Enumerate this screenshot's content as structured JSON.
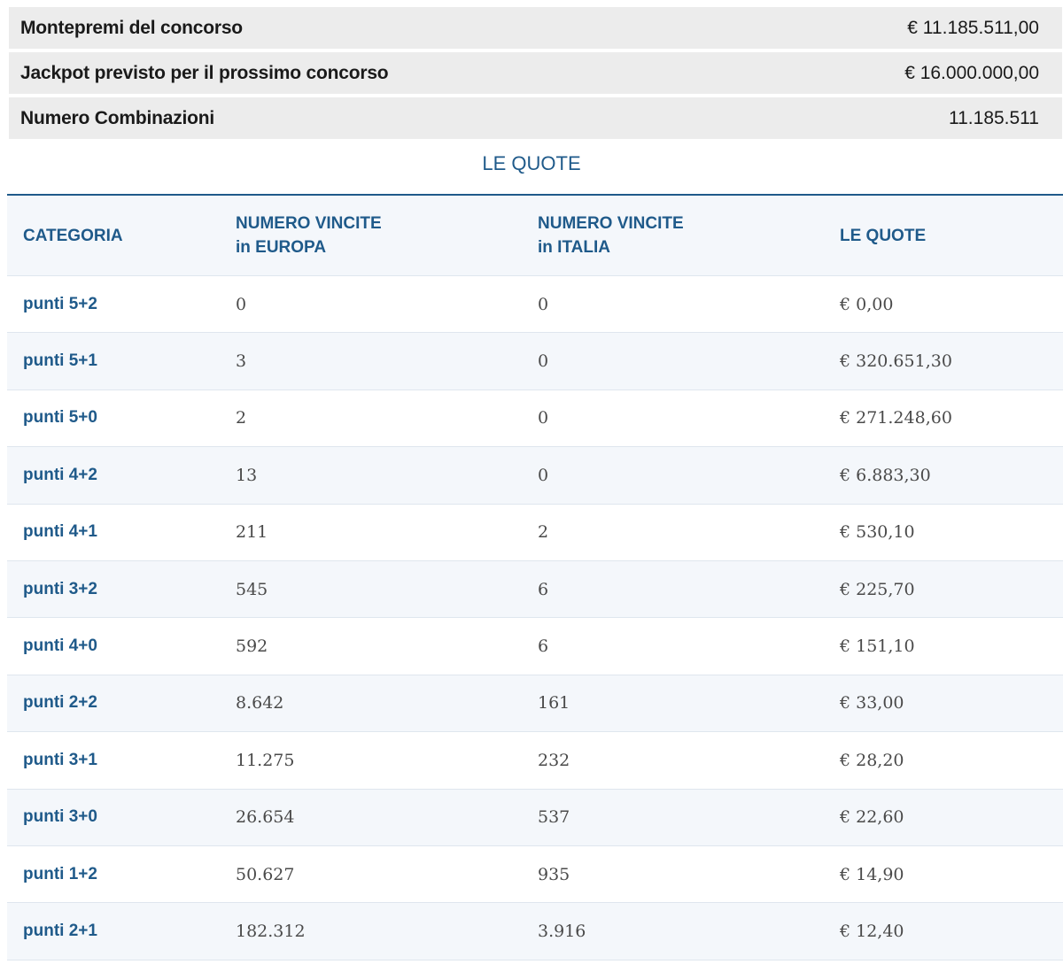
{
  "summary": [
    {
      "label": "Montepremi del concorso",
      "value": "€ 11.185.511,00"
    },
    {
      "label": "Jackpot previsto per il prossimo concorso",
      "value": "€ 16.000.000,00"
    },
    {
      "label": "Numero Combinazioni",
      "value": "11.185.511"
    }
  ],
  "section_title": "LE QUOTE",
  "table": {
    "headers": {
      "categoria": "CATEGORIA",
      "europa_line1": "NUMERO VINCITE",
      "europa_line2": "in EUROPA",
      "italia_line1": "NUMERO VINCITE",
      "italia_line2": "in ITALIA",
      "quote": "LE QUOTE"
    },
    "rows": [
      {
        "categoria": "punti 5+2",
        "europa": "0",
        "italia": "0",
        "quota": "€ 0,00"
      },
      {
        "categoria": "punti 5+1",
        "europa": "3",
        "italia": "0",
        "quota": "€ 320.651,30"
      },
      {
        "categoria": "punti 5+0",
        "europa": "2",
        "italia": "0",
        "quota": "€ 271.248,60"
      },
      {
        "categoria": "punti 4+2",
        "europa": "13",
        "italia": "0",
        "quota": "€ 6.883,30"
      },
      {
        "categoria": "punti 4+1",
        "europa": "211",
        "italia": "2",
        "quota": "€ 530,10"
      },
      {
        "categoria": "punti 3+2",
        "europa": "545",
        "italia": "6",
        "quota": "€ 225,70"
      },
      {
        "categoria": "punti 4+0",
        "europa": "592",
        "italia": "6",
        "quota": "€ 151,10"
      },
      {
        "categoria": "punti 2+2",
        "europa": "8.642",
        "italia": "161",
        "quota": "€ 33,00"
      },
      {
        "categoria": "punti 3+1",
        "europa": "11.275",
        "italia": "232",
        "quota": "€ 28,20"
      },
      {
        "categoria": "punti 3+0",
        "europa": "26.654",
        "italia": "537",
        "quota": "€ 22,60"
      },
      {
        "categoria": "punti 1+2",
        "europa": "50.627",
        "italia": "935",
        "quota": "€ 14,90"
      },
      {
        "categoria": "punti 2+1",
        "europa": "182.312",
        "italia": "3.916",
        "quota": "€ 12,40"
      }
    ]
  }
}
